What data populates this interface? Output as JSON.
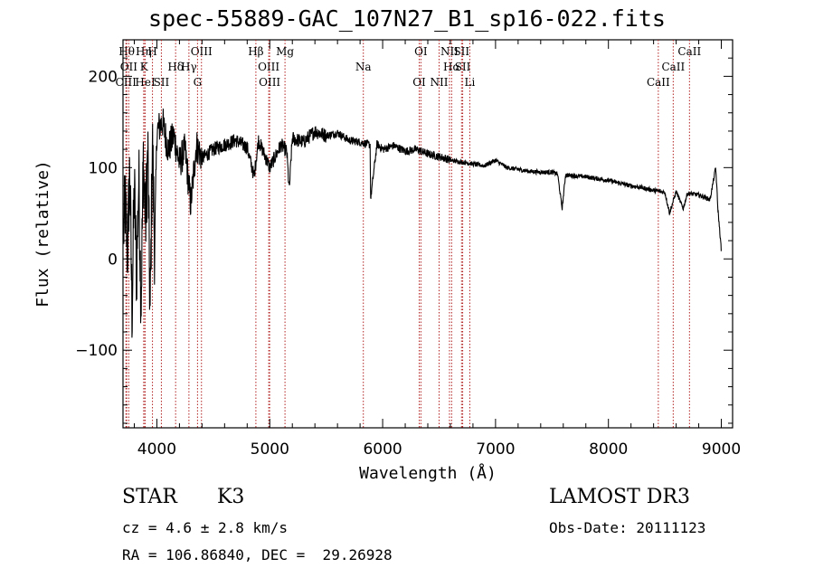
{
  "chart_data": {
    "type": "line",
    "title": "spec-55889-GAC_107N27_B1_sp16-022.fits",
    "xlabel": "Wavelength (Å)",
    "ylabel": "Flux (relative)",
    "xlim": [
      3700,
      9100
    ],
    "ylim": [
      -185,
      240
    ],
    "x_ticks": [
      4000,
      5000,
      6000,
      7000,
      8000,
      9000
    ],
    "y_ticks": [
      -100,
      0,
      100,
      200
    ],
    "tick_labels": {
      "x": [
        "4000",
        "5000",
        "6000",
        "7000",
        "8000",
        "9000"
      ],
      "y": [
        "−100",
        "0",
        "100",
        "200"
      ]
    },
    "grid": false,
    "line_color": "#000000",
    "marker_color": "#b22222",
    "series": [
      {
        "name": "spectrum",
        "x": [
          3700,
          3720,
          3740,
          3760,
          3780,
          3800,
          3820,
          3840,
          3860,
          3880,
          3900,
          3920,
          3940,
          3960,
          3980,
          4000,
          4050,
          4100,
          4150,
          4200,
          4250,
          4300,
          4350,
          4400,
          4500,
          4600,
          4700,
          4800,
          4861,
          4900,
          5000,
          5100,
          5150,
          5172,
          5200,
          5300,
          5400,
          5500,
          5600,
          5700,
          5800,
          5890,
          5893,
          5950,
          6000,
          6100,
          6200,
          6300,
          6400,
          6500,
          6563,
          6600,
          6700,
          6800,
          6900,
          7000,
          7100,
          7200,
          7300,
          7400,
          7500,
          7550,
          7590,
          7620,
          7700,
          7800,
          7900,
          8000,
          8100,
          8200,
          8300,
          8400,
          8500,
          8542,
          8600,
          8662,
          8700,
          8800,
          8900,
          8950,
          8970,
          9000
        ],
        "y": [
          20,
          60,
          5,
          100,
          -60,
          80,
          -20,
          90,
          -50,
          110,
          40,
          120,
          -70,
          130,
          10,
          140,
          150,
          120,
          135,
          105,
          120,
          60,
          125,
          110,
          120,
          125,
          130,
          122,
          90,
          130,
          100,
          125,
          118,
          75,
          132,
          128,
          140,
          135,
          138,
          130,
          128,
          125,
          65,
          126,
          120,
          124,
          118,
          120,
          115,
          112,
          110,
          108,
          106,
          104,
          102,
          108,
          100,
          98,
          96,
          95,
          95,
          93,
          55,
          92,
          91,
          90,
          88,
          86,
          83,
          80,
          78,
          75,
          73,
          50,
          74,
          55,
          72,
          70,
          65,
          100,
          55,
          10
        ]
      }
    ],
    "lines": [
      {
        "name": "Hθ",
        "wl": 3797
      },
      {
        "name": "OII",
        "wl": 3727
      },
      {
        "name": "CIII",
        "wl": 3750
      },
      {
        "name": "Hη",
        "wl": 3835
      },
      {
        "name": "K",
        "wl": 3934
      },
      {
        "name": "HeI",
        "wl": 3889
      },
      {
        "name": "H",
        "wl": 3969
      },
      {
        "name": "Hδ",
        "wl": 4102
      },
      {
        "name": "SII",
        "wl": 4072
      },
      {
        "name": "OIII",
        "wl": 4363
      },
      {
        "name": "Hγ",
        "wl": 4340
      },
      {
        "name": "G",
        "wl": 4304
      },
      {
        "name": "Hβ",
        "wl": 4861
      },
      {
        "name": "OIII",
        "wl": 5007
      },
      {
        "name": "OIII",
        "wl": 4959
      },
      {
        "name": "Mg",
        "wl": 5175
      },
      {
        "name": "Na",
        "wl": 5893
      },
      {
        "name": "OI",
        "wl": 6300
      },
      {
        "name": "OI",
        "wl": 6363
      },
      {
        "name": "Hα",
        "wl": 6563
      },
      {
        "name": "NII",
        "wl": 6548
      },
      {
        "name": "NII",
        "wl": 6584
      },
      {
        "name": "SII",
        "wl": 6717
      },
      {
        "name": "Li",
        "wl": 6708
      },
      {
        "name": "SII",
        "wl": 6731
      },
      {
        "name": "CaII",
        "wl": 8542
      },
      {
        "name": "CaII",
        "wl": 8498
      },
      {
        "name": "CaII",
        "wl": 8662
      }
    ]
  },
  "info": {
    "object_class": "STAR",
    "subclass": "K3",
    "survey": "LAMOST DR3",
    "cz": "cz = 4.6 ± 2.8 km/s",
    "obs_date": "Obs-Date: 20111123",
    "coords": "RA = 106.86840, DEC =  29.26928"
  }
}
